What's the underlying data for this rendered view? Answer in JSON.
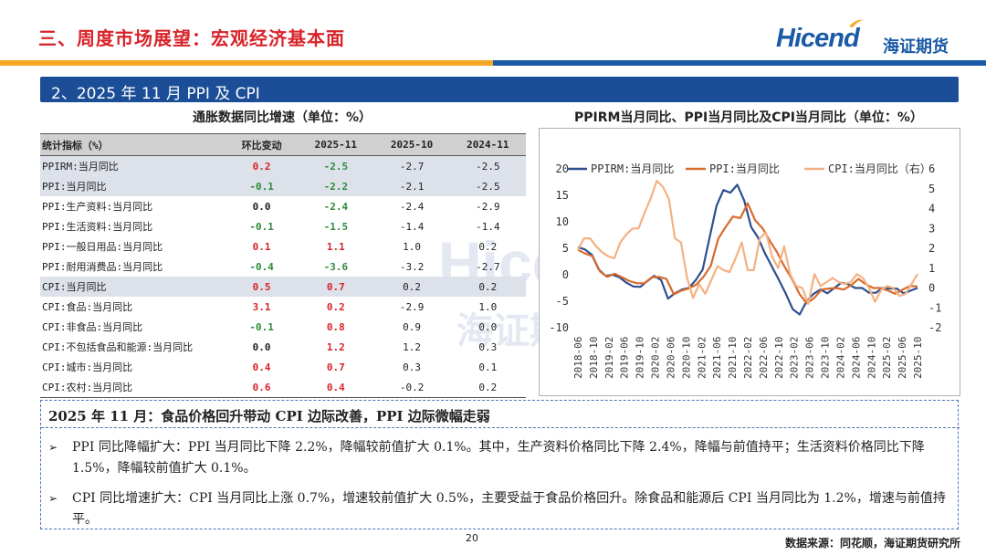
{
  "header": {
    "title": "三、周度市场展望：宏观经济基本面",
    "logo_en": "Hicend",
    "logo_cn": "海证期货"
  },
  "colors": {
    "accent_red": "#d8232a",
    "brand_blue": "#1b4e96",
    "stripe_orange": "#f5a623",
    "stripe_blue": "#1a5aa6"
  },
  "section": {
    "title": "2、2025 年 11 月 PPI 及 CPI"
  },
  "table": {
    "title": "通胀数据同比增速（单位：%）",
    "headers": [
      "统计指标（%）",
      "环比变动",
      "2025-11",
      "2025-10",
      "2024-11"
    ],
    "rows": [
      [
        "PPIRM:当月同比",
        "0.2",
        "-2.5",
        "-2.7",
        "-2.5"
      ],
      [
        "PPI:当月同比",
        "-0.1",
        "-2.2",
        "-2.1",
        "-2.5"
      ],
      [
        "PPI:生产资料:当月同比",
        "0.0",
        "-2.4",
        "-2.4",
        "-2.9"
      ],
      [
        "PPI:生活资料:当月同比",
        "-0.1",
        "-1.5",
        "-1.4",
        "-1.4"
      ],
      [
        "PPI:一般日用品:当月同比",
        "0.1",
        "1.1",
        "1.0",
        "0.2"
      ],
      [
        "PPI:耐用消费品:当月同比",
        "-0.4",
        "-3.6",
        "-3.2",
        "-2.7"
      ],
      [
        "CPI:当月同比",
        "0.5",
        "0.7",
        "0.2",
        "0.2"
      ],
      [
        "CPI:食品:当月同比",
        "3.1",
        "0.2",
        "-2.9",
        "1.0"
      ],
      [
        "CPI:非食品:当月同比",
        "-0.1",
        "0.8",
        "0.9",
        "0.0"
      ],
      [
        "CPI:不包括食品和能源:当月同比",
        "0.0",
        "1.2",
        "1.2",
        "0.3"
      ],
      [
        "CPI:城市:当月同比",
        "0.4",
        "0.7",
        "0.3",
        "0.1"
      ],
      [
        "CPI:农村:当月同比",
        "0.6",
        "0.4",
        "-0.2",
        "0.2"
      ]
    ]
  },
  "chart_data": {
    "type": "line",
    "title": "PPIRM当月同比、PPI当月同比及CPI当月同比（单位：%）",
    "legend": [
      "PPIRM:当月同比",
      "PPI:当月同比",
      "CPI:当月同比（右）"
    ],
    "x_ticks": [
      "2018-06",
      "2018-10",
      "2019-02",
      "2019-06",
      "2019-10",
      "2020-02",
      "2020-06",
      "2020-10",
      "2021-02",
      "2021-06",
      "2021-10",
      "2022-02",
      "2022-06",
      "2022-10",
      "2023-02",
      "2023-06",
      "2023-10",
      "2024-02",
      "2024-06",
      "2024-10",
      "2025-02",
      "2025-06",
      "2025-10"
    ],
    "y_left": {
      "min": -10,
      "max": 20,
      "ticks": [
        -10,
        -5,
        0,
        5,
        10,
        15,
        20
      ]
    },
    "y_right": {
      "min": -2,
      "max": 6,
      "ticks": [
        -2,
        -1,
        0,
        1,
        2,
        3,
        4,
        5,
        6
      ]
    },
    "series": [
      {
        "name": "PPIRM:当月同比",
        "color": "#2d4f8e",
        "axis": "left",
        "values": [
          5.2,
          4.8,
          3.8,
          1.0,
          -0.2,
          0.0,
          -0.5,
          -1.5,
          -2.2,
          -2.3,
          -1.2,
          -0.2,
          -1.0,
          -4.5,
          -3.5,
          -2.8,
          -2.5,
          -1.0,
          1.0,
          7.0,
          13.0,
          16.0,
          15.5,
          17.0,
          14.0,
          9.0,
          7.0,
          4.0,
          1.5,
          -1.0,
          -3.6,
          -6.5,
          -7.5,
          -5.0,
          -3.6,
          -2.8,
          -3.5,
          -2.5,
          -1.5,
          -1.8,
          -2.5,
          -2.5,
          -3.4,
          -3.4,
          -2.5,
          -2.6,
          -2.6,
          -3.5,
          -3.0,
          -2.5
        ]
      },
      {
        "name": "PPI:当月同比",
        "color": "#d86a2c",
        "axis": "left",
        "values": [
          4.7,
          4.0,
          3.5,
          0.6,
          -0.4,
          0.2,
          -0.5,
          -1.2,
          -1.6,
          -1.6,
          -0.5,
          -0.4,
          -0.8,
          -3.7,
          -3.0,
          -2.6,
          -1.9,
          -0.4,
          1.7,
          6.8,
          9.0,
          11.0,
          10.7,
          13.5,
          10.3,
          8.8,
          6.4,
          4.2,
          1.5,
          -0.8,
          -3.6,
          -5.4,
          -4.4,
          -2.8,
          -2.6,
          -2.5,
          -2.8,
          -2.0,
          -0.8,
          -1.8,
          -2.5,
          -2.5,
          -3.0,
          -3.6,
          -2.8,
          -2.1,
          -2.2
        ]
      },
      {
        "name": "CPI:当月同比（右）",
        "color": "#f4b183",
        "axis": "right",
        "values": [
          1.9,
          2.5,
          2.5,
          2.1,
          1.8,
          1.6,
          1.5,
          2.3,
          2.7,
          3.0,
          3.0,
          3.8,
          4.5,
          5.4,
          5.1,
          4.5,
          2.5,
          2.3,
          0.5,
          -0.5,
          0.2,
          -0.3,
          0.4,
          1.1,
          0.9,
          0.8,
          1.5,
          2.3,
          0.9,
          0.9,
          2.5,
          2.8,
          1.6,
          1.0,
          2.1,
          0.7,
          0.1,
          0.0,
          -0.8,
          0.7,
          0.1,
          0.3,
          0.5,
          0.3,
          0.2,
          0.3,
          0.7,
          0.5,
          0.0,
          -0.7,
          -0.1,
          0.1,
          0.0,
          -0.4,
          -0.3,
          0.2,
          0.7
        ]
      }
    ]
  },
  "summary": {
    "heading": "2025 年 11 月：食品价格回升带动 CPI 边际改善，PPI 边际微幅走弱",
    "bullets": [
      "PPI 同比降幅扩大：PPI 当月同比下降 2.2%，降幅较前值扩大 0.1%。其中，生产资料价格同比下降 2.4%，降幅与前值持平；生活资料价格同比下降 1.5%，降幅较前值扩大 0.1%。",
      "CPI 同比增速扩大：CPI 当月同比上涨 0.7%，增速较前值扩大 0.5%，主要受益于食品价格回升。除食品和能源后 CPI 当月同比为 1.2%，增速与前值持平。"
    ]
  },
  "footer": {
    "page": "20",
    "source": "数据来源：同花顺，海证期货研究所"
  }
}
